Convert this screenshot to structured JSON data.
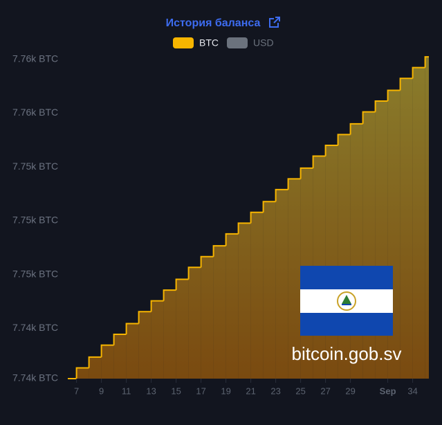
{
  "chart_data": {
    "type": "step-area",
    "title": "История баланса",
    "legend": [
      {
        "name": "BTC",
        "color": "#f7b500",
        "active": true
      },
      {
        "name": "USD",
        "color": "#6b727d",
        "active": false
      }
    ],
    "series": [
      {
        "name": "BTC",
        "color": "#f7b500",
        "x": [
          6.3,
          7,
          8,
          9,
          10,
          11,
          12,
          13,
          14,
          15,
          16,
          17,
          18,
          19,
          20,
          21,
          22,
          23,
          24,
          25,
          26,
          27,
          28,
          29,
          30,
          31,
          32,
          33,
          34,
          35
        ],
        "values": [
          7736.3,
          7737.2,
          7738.1,
          7739.1,
          7740.0,
          7740.9,
          7741.9,
          7742.8,
          7743.7,
          7744.6,
          7745.6,
          7746.5,
          7747.4,
          7748.4,
          7749.3,
          7750.2,
          7751.1,
          7752.1,
          7753.0,
          7753.9,
          7754.9,
          7755.8,
          7756.7,
          7757.6,
          7758.6,
          7759.5,
          7760.4,
          7761.4,
          7762.3,
          7763.2
        ]
      }
    ],
    "xlim": [
      6.3,
      35.3
    ],
    "xticks": [
      7,
      9,
      11,
      13,
      15,
      17,
      19,
      21,
      23,
      25,
      27,
      29,
      {
        "value": 32,
        "label": "Sep"
      },
      34
    ],
    "ylim": [
      7736.3,
      7763.9
    ],
    "yticks": [
      {
        "value": 7736.3,
        "label": "7.74k BTC"
      },
      {
        "value": 7740.5,
        "label": "7.74k BTC"
      },
      {
        "value": 7745,
        "label": "7.75k BTC"
      },
      {
        "value": 7749.5,
        "label": "7.75k BTC"
      },
      {
        "value": 7754,
        "label": "7.75k BTC"
      },
      {
        "value": 7758.5,
        "label": "7.76k BTC"
      },
      {
        "value": 7763,
        "label": "7.76k BTC"
      }
    ],
    "watermark": "bitcoin.gob.sv"
  }
}
